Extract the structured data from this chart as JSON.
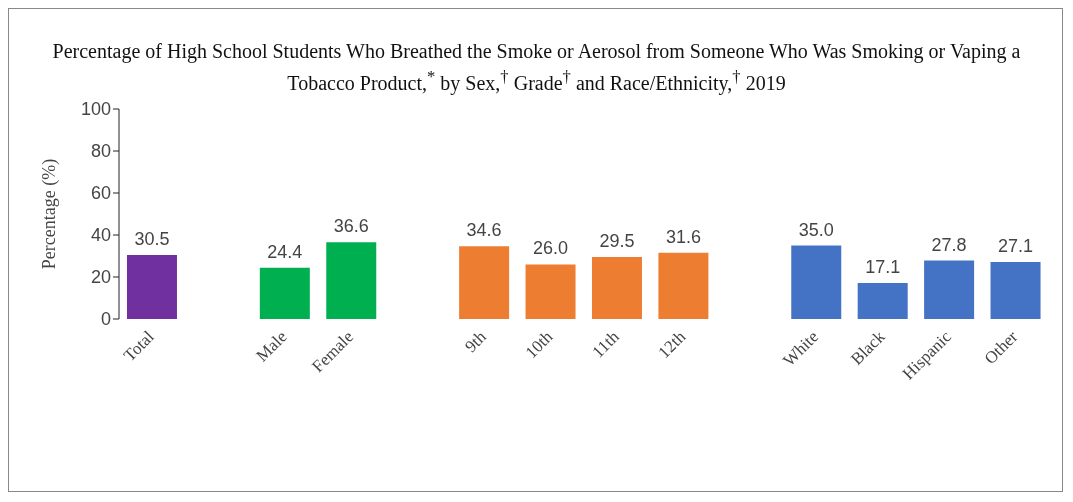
{
  "chart_data": {
    "type": "bar",
    "title": "Percentage of High School Students Who Breathed the Smoke or Aerosol from Someone Who Was Smoking  or Vaping a Tobacco Product,$^{*}$ by Sex,$^{†}$ Grade$^{†}$ and Race/Ethnicity,$^{†}$ 2019",
    "ylabel": "Percentage (%)",
    "categories": [
      "Total",
      null,
      "Male",
      "Female",
      null,
      "9th",
      "10th",
      "11th",
      "12th",
      null,
      "White",
      "Black",
      "Hispanic",
      "Other"
    ],
    "values": [
      30.5,
      null,
      24.4,
      36.6,
      null,
      34.6,
      26.0,
      29.5,
      31.6,
      null,
      35.0,
      17.1,
      27.8,
      27.1
    ],
    "colors": [
      "#7030a0",
      null,
      "#00b050",
      "#00b050",
      null,
      "#ed7d31",
      "#ed7d31",
      "#ed7d31",
      "#ed7d31",
      null,
      "#4472c4",
      "#4472c4",
      "#4472c4",
      "#4472c4"
    ],
    "value_labels": [
      "30.5",
      null,
      "24.4",
      "36.6",
      null,
      "34.6",
      "26.0",
      "29.5",
      "31.6",
      null,
      "35.0",
      "17.1",
      "27.8",
      "27.1"
    ],
    "ylim": [
      0,
      100
    ],
    "yticks": [
      0,
      20,
      40,
      60,
      80,
      100
    ],
    "grid": false,
    "legend": false
  }
}
